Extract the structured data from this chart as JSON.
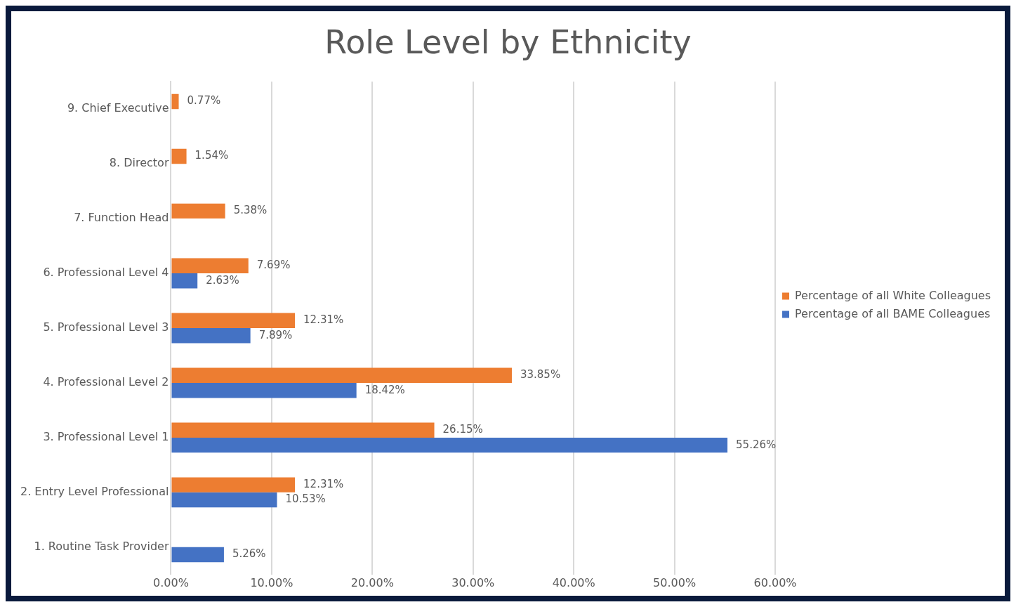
{
  "chart_data": {
    "type": "bar",
    "orientation": "horizontal",
    "title": "Role Level by Ethnicity",
    "categories": [
      "9. Chief Executive",
      "8. Director",
      "7. Function Head",
      "6. Professional Level 4",
      "5. Professional Level 3",
      "4. Professional Level 2",
      "3. Professional Level 1",
      "2. Entry Level Professional",
      "1. Routine Task Provider"
    ],
    "series": [
      {
        "name": "Percentage of all White Colleagues",
        "color": "#ed7d31",
        "values": [
          0.77,
          1.54,
          5.38,
          7.69,
          12.31,
          33.85,
          26.15,
          12.31,
          null
        ],
        "value_labels": [
          "0.77%",
          "1.54%",
          "5.38%",
          "7.69%",
          "12.31%",
          "33.85%",
          "26.15%",
          "12.31%",
          null
        ]
      },
      {
        "name": "Percentage of all BAME Colleagues",
        "color": "#4472c4",
        "values": [
          null,
          null,
          null,
          2.63,
          7.89,
          18.42,
          55.26,
          10.53,
          5.26
        ],
        "value_labels": [
          null,
          null,
          null,
          "2.63%",
          "7.89%",
          "18.42%",
          "55.26%",
          "10.53%",
          "5.26%"
        ]
      }
    ],
    "xlim": [
      0,
      60
    ],
    "xticks": [
      {
        "value": 0,
        "label": "0.00%"
      },
      {
        "value": 10,
        "label": "10.00%"
      },
      {
        "value": 20,
        "label": "20.00%"
      },
      {
        "value": 30,
        "label": "30.00%"
      },
      {
        "value": 40,
        "label": "40.00%"
      },
      {
        "value": 50,
        "label": "50.00%"
      },
      {
        "value": 60,
        "label": "60.00%"
      }
    ],
    "grid": "x",
    "legend": "right"
  }
}
